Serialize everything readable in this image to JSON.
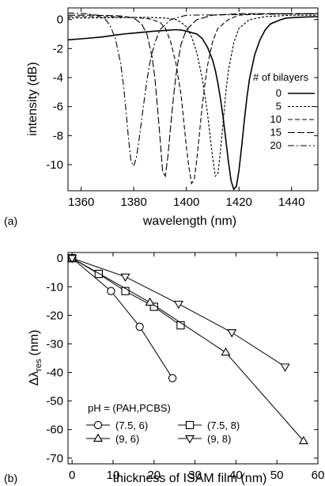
{
  "chart_data": [
    {
      "panel_label": "(a)",
      "type": "line",
      "xlabel": "wavelength (nm)",
      "ylabel": "intensity (dB)",
      "xlim": [
        1355,
        1450
      ],
      "ylim": [
        -11.8,
        0.8
      ],
      "xticks": [
        1360,
        1380,
        1400,
        1420,
        1440
      ],
      "yticks": [
        0,
        -2,
        -4,
        -6,
        -8,
        -10
      ],
      "grid": false,
      "legend": {
        "title": "# of bilayers",
        "placement": "right"
      },
      "series": [
        {
          "name": "0",
          "dash": "",
          "stroke_width": 1.6,
          "x": [
            1355,
            1362,
            1368,
            1372,
            1376,
            1382,
            1388,
            1392,
            1396,
            1398,
            1400,
            1402,
            1404,
            1406,
            1408,
            1410,
            1411,
            1412,
            1413,
            1414,
            1415,
            1416,
            1417,
            1418,
            1419,
            1420,
            1421,
            1422,
            1423,
            1424,
            1426,
            1428,
            1430,
            1432,
            1434,
            1436,
            1438,
            1442,
            1446,
            1450
          ],
          "y": [
            -1.4,
            -1.3,
            -1.2,
            -1.1,
            -1.0,
            -0.9,
            -0.8,
            -0.75,
            -0.7,
            -0.72,
            -0.8,
            -0.9,
            -1.0,
            -1.3,
            -1.9,
            -2.8,
            -3.5,
            -4.4,
            -5.5,
            -6.8,
            -8.3,
            -9.8,
            -11.1,
            -11.7,
            -11.5,
            -10.4,
            -8.8,
            -7.0,
            -5.4,
            -4.1,
            -2.4,
            -1.4,
            -0.7,
            -0.3,
            -0.15,
            0.0,
            0.1,
            0.15,
            0.18,
            0.2
          ]
        },
        {
          "name": "5",
          "dash": "3,2",
          "stroke_width": 1.1,
          "x": [
            1355,
            1370,
            1385,
            1392,
            1396,
            1398,
            1400,
            1402,
            1404,
            1406,
            1408,
            1409,
            1410,
            1411,
            1412,
            1413,
            1414,
            1415,
            1416,
            1418,
            1420,
            1424,
            1430,
            1440,
            1450
          ],
          "y": [
            0.1,
            0.12,
            0.15,
            0.1,
            0.0,
            -0.2,
            -0.5,
            -1.2,
            -2.3,
            -4.0,
            -6.4,
            -8.0,
            -9.5,
            -10.8,
            -10.6,
            -9.0,
            -7.0,
            -5.0,
            -3.5,
            -1.6,
            -0.6,
            0.0,
            0.2,
            0.3,
            0.3
          ]
        },
        {
          "name": "10",
          "dash": "6,3",
          "stroke_width": 1.1,
          "x": [
            1355,
            1370,
            1380,
            1386,
            1390,
            1392,
            1394,
            1396,
            1398,
            1399,
            1400,
            1401,
            1402,
            1403,
            1404,
            1405,
            1406,
            1407,
            1408,
            1410,
            1412,
            1416,
            1420,
            1430,
            1450
          ],
          "y": [
            0.2,
            0.2,
            0.15,
            0.05,
            -0.2,
            -0.6,
            -1.5,
            -3.0,
            -5.2,
            -7.0,
            -8.8,
            -10.2,
            -11.3,
            -11.0,
            -9.6,
            -7.8,
            -6.0,
            -4.5,
            -3.2,
            -1.5,
            -0.6,
            0.0,
            0.3,
            0.4,
            0.4
          ]
        },
        {
          "name": "15",
          "dash": "9,3",
          "stroke_width": 1.1,
          "x": [
            1355,
            1365,
            1375,
            1380,
            1383,
            1385,
            1387,
            1388,
            1389,
            1390,
            1391,
            1392,
            1393,
            1394,
            1395,
            1396,
            1397,
            1398,
            1400,
            1404,
            1410,
            1420,
            1450
          ],
          "y": [
            0.3,
            0.3,
            0.25,
            0.1,
            -0.3,
            -1.0,
            -2.6,
            -4.0,
            -6.0,
            -8.2,
            -10.5,
            -10.8,
            -9.4,
            -7.4,
            -5.5,
            -3.9,
            -2.7,
            -1.7,
            -0.7,
            0.0,
            0.3,
            0.4,
            0.4
          ]
        },
        {
          "name": "20",
          "dash": "8,3,2,3",
          "stroke_width": 1.1,
          "x": [
            1355,
            1362,
            1366,
            1369,
            1371,
            1373,
            1375,
            1376,
            1377,
            1378,
            1379,
            1380,
            1381,
            1382,
            1383,
            1384,
            1385,
            1386,
            1387,
            1388,
            1390,
            1394,
            1400,
            1450
          ],
          "y": [
            0.45,
            0.4,
            0.3,
            0.05,
            -0.4,
            -1.3,
            -3.0,
            -4.4,
            -6.2,
            -8.2,
            -9.8,
            -10.1,
            -9.5,
            -8.3,
            -6.9,
            -5.5,
            -4.2,
            -3.1,
            -2.3,
            -1.6,
            -0.7,
            0.0,
            0.3,
            0.4
          ]
        }
      ]
    },
    {
      "panel_label": "(b)",
      "type": "scatter",
      "xlabel": "thickness of ISAM film (nm)",
      "ylabel": "Δλ",
      "ylabel_subscript": "res",
      "ylabel_unit": "(nm)",
      "xlim": [
        -1,
        60
      ],
      "ylim": [
        -72,
        2
      ],
      "xticks": [
        0,
        10,
        20,
        30,
        40,
        50,
        60
      ],
      "yticks": [
        0,
        -10,
        -20,
        -30,
        -40,
        -50,
        -60,
        -70
      ],
      "grid": false,
      "legend": {
        "title": "pH = (PAH,PCBS)",
        "placement": "bottom-left"
      },
      "series": [
        {
          "name": "(7.5, 6)",
          "marker": "circle",
          "x": [
            0,
            9.5,
            16.5,
            24.5
          ],
          "y": [
            0,
            -11.5,
            -24,
            -42
          ]
        },
        {
          "name": "(7.5, 8)",
          "marker": "square",
          "x": [
            0,
            6.5,
            13,
            20,
            26.5
          ],
          "y": [
            0,
            -5.5,
            -11.5,
            -17,
            -23.5
          ]
        },
        {
          "name": "(9, 6)",
          "marker": "triangle-up",
          "x": [
            0,
            19,
            37.5,
            56.5
          ],
          "y": [
            0,
            -15.5,
            -33,
            -64
          ]
        },
        {
          "name": "(9, 8)",
          "marker": "triangle-down",
          "x": [
            0,
            13,
            26,
            39,
            52
          ],
          "y": [
            0,
            -6.5,
            -16,
            -26,
            -38
          ]
        }
      ]
    }
  ]
}
